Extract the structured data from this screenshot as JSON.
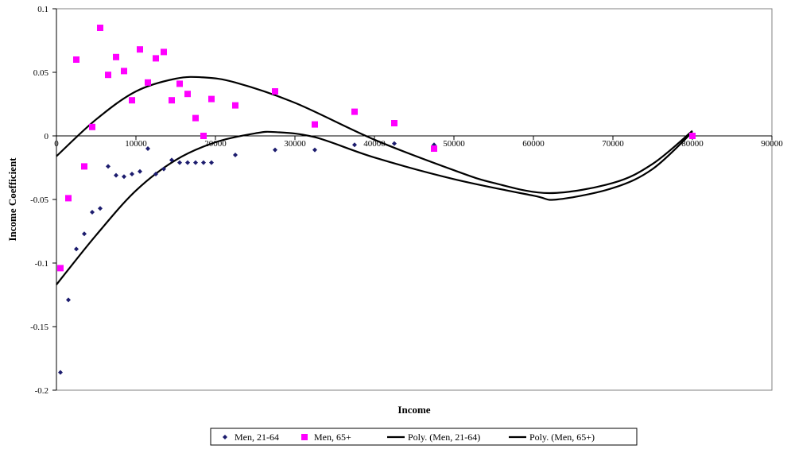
{
  "chart_data": {
    "type": "scatter",
    "xlabel": "Income",
    "ylabel": "Income Coefficient",
    "xlim": [
      0,
      90000
    ],
    "ylim": [
      -0.2,
      0.1
    ],
    "x_ticks": [
      0,
      10000,
      20000,
      30000,
      40000,
      50000,
      60000,
      70000,
      80000,
      90000
    ],
    "x_tick_labels": [
      "0",
      "10000",
      "20000",
      "30000",
      "40000",
      "50000",
      "60000",
      "70000",
      "80000",
      "90000"
    ],
    "y_ticks": [
      0.1,
      0.05,
      0,
      -0.05,
      -0.1,
      -0.15,
      -0.2
    ],
    "y_tick_labels": [
      "0.1",
      "0.05",
      "0",
      "-0.05",
      "-0.1",
      "-0.15",
      "-0.2"
    ],
    "grid": false,
    "legend_position": "bottom",
    "series": [
      {
        "name": "Men, 21-64",
        "kind": "points",
        "marker": "diamond",
        "color": "#1c1c6e",
        "points": [
          [
            500,
            -0.186
          ],
          [
            1500,
            -0.129
          ],
          [
            2500,
            -0.089
          ],
          [
            3500,
            -0.077
          ],
          [
            4500,
            -0.06
          ],
          [
            5500,
            -0.057
          ],
          [
            6500,
            -0.024
          ],
          [
            7500,
            -0.031
          ],
          [
            8500,
            -0.032
          ],
          [
            9500,
            -0.03
          ],
          [
            10500,
            -0.028
          ],
          [
            11500,
            -0.01
          ],
          [
            12500,
            -0.03
          ],
          [
            13500,
            -0.026
          ],
          [
            14500,
            -0.019
          ],
          [
            15500,
            -0.021
          ],
          [
            16500,
            -0.021
          ],
          [
            17500,
            -0.021
          ],
          [
            18500,
            -0.021
          ],
          [
            19500,
            -0.021
          ],
          [
            22500,
            -0.015
          ],
          [
            27500,
            -0.011
          ],
          [
            32500,
            -0.011
          ],
          [
            37500,
            -0.007
          ],
          [
            42500,
            -0.006
          ],
          [
            47500,
            -0.007
          ],
          [
            80000,
            0.0
          ]
        ]
      },
      {
        "name": "Men, 65+",
        "kind": "points",
        "marker": "square",
        "color": "#ff00ff",
        "points": [
          [
            500,
            -0.104
          ],
          [
            1500,
            -0.049
          ],
          [
            2500,
            0.06
          ],
          [
            3500,
            -0.024
          ],
          [
            4500,
            0.007
          ],
          [
            5500,
            0.085
          ],
          [
            6500,
            0.048
          ],
          [
            7500,
            0.062
          ],
          [
            8500,
            0.051
          ],
          [
            9500,
            0.028
          ],
          [
            10500,
            0.068
          ],
          [
            11500,
            0.042
          ],
          [
            12500,
            0.061
          ],
          [
            13500,
            0.066
          ],
          [
            14500,
            0.028
          ],
          [
            15500,
            0.041
          ],
          [
            16500,
            0.033
          ],
          [
            17500,
            0.014
          ],
          [
            18500,
            0.0
          ],
          [
            19500,
            0.029
          ],
          [
            22500,
            0.024
          ],
          [
            27500,
            0.035
          ],
          [
            32500,
            0.009
          ],
          [
            37500,
            0.019
          ],
          [
            42500,
            0.01
          ],
          [
            47500,
            -0.01
          ],
          [
            80000,
            0.0
          ]
        ]
      },
      {
        "name": "Poly. (Men, 21-64)",
        "kind": "trendline",
        "color": "#000000",
        "points": [
          [
            0,
            -0.117
          ],
          [
            5000,
            -0.078
          ],
          [
            10000,
            -0.043
          ],
          [
            15000,
            -0.019
          ],
          [
            20000,
            -0.005
          ],
          [
            25000,
            0.002
          ],
          [
            27500,
            0.003
          ],
          [
            32500,
            -0.001
          ],
          [
            40000,
            -0.017
          ],
          [
            50000,
            -0.034
          ],
          [
            60000,
            -0.047
          ],
          [
            63000,
            -0.05
          ],
          [
            70000,
            -0.041
          ],
          [
            75000,
            -0.026
          ],
          [
            80000,
            0.003
          ]
        ]
      },
      {
        "name": "Poly. (Men, 65+)",
        "kind": "trendline",
        "color": "#000000",
        "points": [
          [
            0,
            -0.016
          ],
          [
            5000,
            0.013
          ],
          [
            10000,
            0.035
          ],
          [
            15000,
            0.045
          ],
          [
            18500,
            0.046
          ],
          [
            22500,
            0.042
          ],
          [
            30000,
            0.026
          ],
          [
            40000,
            -0.003
          ],
          [
            50000,
            -0.027
          ],
          [
            55000,
            -0.037
          ],
          [
            62000,
            -0.045
          ],
          [
            70000,
            -0.037
          ],
          [
            75000,
            -0.022
          ],
          [
            80000,
            0.004
          ]
        ]
      }
    ]
  }
}
